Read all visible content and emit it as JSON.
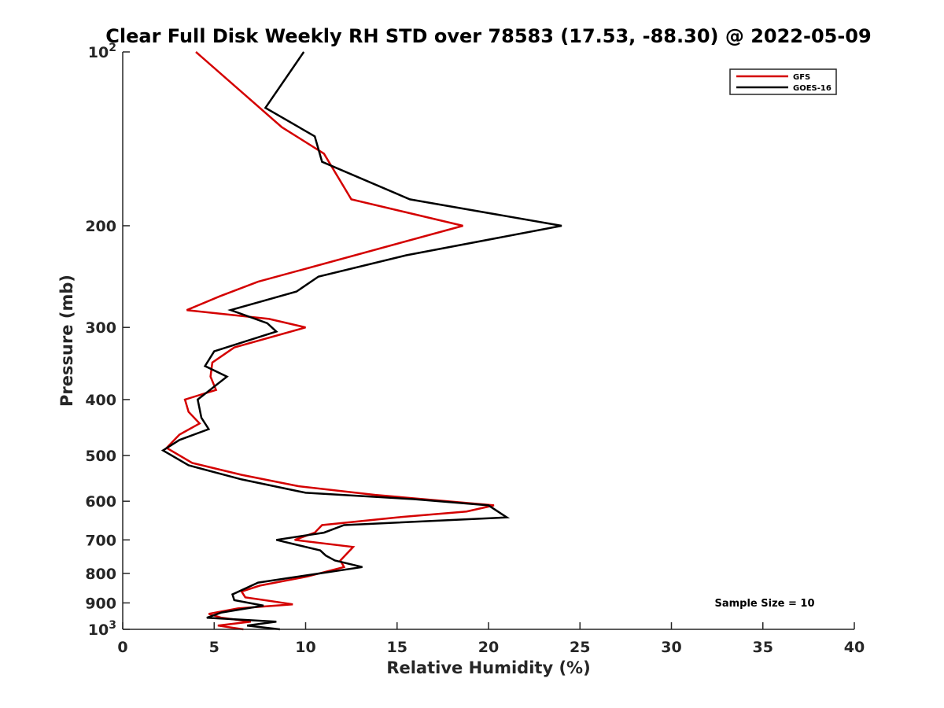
{
  "chart_data": {
    "type": "line",
    "title": "Clear Full Disk Weekly RH STD over 78583 (17.53, -88.30) @ 2022-05-09",
    "xlabel": "Relative Humidity (%)",
    "ylabel": "Pressure (mb)",
    "xlim": [
      0,
      40
    ],
    "ylim": [
      100,
      1000
    ],
    "y_scale": "log",
    "y_reversed": true,
    "grid": false,
    "legend_position": "top-right",
    "xticks": [
      0,
      5,
      10,
      15,
      20,
      25,
      30,
      35,
      40
    ],
    "xtick_labels": [
      "0",
      "5",
      "10",
      "15",
      "20",
      "25",
      "30",
      "35",
      "40"
    ],
    "yticks": [
      100,
      200,
      300,
      400,
      500,
      600,
      700,
      800,
      900,
      1000
    ],
    "ytick_labels": [
      {
        "base": "10",
        "exp": "2"
      },
      {
        "base": "200",
        "exp": ""
      },
      {
        "base": "300",
        "exp": ""
      },
      {
        "base": "400",
        "exp": ""
      },
      {
        "base": "500",
        "exp": ""
      },
      {
        "base": "600",
        "exp": ""
      },
      {
        "base": "700",
        "exp": ""
      },
      {
        "base": "800",
        "exp": ""
      },
      {
        "base": "900",
        "exp": ""
      },
      {
        "base": "10",
        "exp": "3"
      }
    ],
    "annotation": "Sample Size = 10",
    "series": [
      {
        "name": "GFS",
        "color": "#d40000",
        "points": [
          [
            4.0,
            100
          ],
          [
            8.7,
            135
          ],
          [
            11.0,
            150
          ],
          [
            12.5,
            180
          ],
          [
            18.6,
            200
          ],
          [
            7.4,
            250
          ],
          [
            5.3,
            265
          ],
          [
            3.5,
            280
          ],
          [
            8.0,
            290
          ],
          [
            10.0,
            300
          ],
          [
            6.1,
            325
          ],
          [
            4.9,
            345
          ],
          [
            4.8,
            365
          ],
          [
            5.1,
            385
          ],
          [
            3.4,
            400
          ],
          [
            3.6,
            420
          ],
          [
            4.2,
            440
          ],
          [
            3.1,
            460
          ],
          [
            2.4,
            485
          ],
          [
            3.8,
            515
          ],
          [
            6.5,
            540
          ],
          [
            9.6,
            565
          ],
          [
            13.8,
            585
          ],
          [
            20.3,
            610
          ],
          [
            18.8,
            625
          ],
          [
            15.0,
            640
          ],
          [
            10.9,
            660
          ],
          [
            10.5,
            680
          ],
          [
            9.4,
            700
          ],
          [
            12.6,
            720
          ],
          [
            11.9,
            760
          ],
          [
            12.1,
            780
          ],
          [
            10.1,
            810
          ],
          [
            7.5,
            840
          ],
          [
            6.5,
            860
          ],
          [
            6.7,
            880
          ],
          [
            9.3,
            905
          ],
          [
            6.3,
            920
          ],
          [
            4.7,
            940
          ],
          [
            5.4,
            955
          ],
          [
            7.0,
            970
          ],
          [
            5.2,
            985
          ],
          [
            6.6,
            1000
          ]
        ]
      },
      {
        "name": "GOES-16",
        "color": "#000000",
        "points": [
          [
            9.9,
            100
          ],
          [
            7.8,
            125
          ],
          [
            10.5,
            140
          ],
          [
            10.9,
            155
          ],
          [
            15.7,
            180
          ],
          [
            24.0,
            200
          ],
          [
            15.5,
            225
          ],
          [
            10.7,
            245
          ],
          [
            9.5,
            260
          ],
          [
            5.9,
            280
          ],
          [
            7.9,
            295
          ],
          [
            8.4,
            305
          ],
          [
            5.0,
            330
          ],
          [
            4.5,
            350
          ],
          [
            5.7,
            365
          ],
          [
            4.1,
            400
          ],
          [
            4.3,
            430
          ],
          [
            4.7,
            450
          ],
          [
            3.1,
            470
          ],
          [
            2.2,
            490
          ],
          [
            3.6,
            520
          ],
          [
            6.5,
            550
          ],
          [
            10.0,
            580
          ],
          [
            15.9,
            595
          ],
          [
            20.0,
            610
          ],
          [
            21.0,
            640
          ],
          [
            12.1,
            660
          ],
          [
            11.0,
            680
          ],
          [
            8.4,
            700
          ],
          [
            10.8,
            730
          ],
          [
            11.1,
            745
          ],
          [
            11.6,
            760
          ],
          [
            13.1,
            780
          ],
          [
            7.4,
            830
          ],
          [
            6.0,
            870
          ],
          [
            6.1,
            890
          ],
          [
            7.7,
            910
          ],
          [
            5.4,
            935
          ],
          [
            4.6,
            955
          ],
          [
            8.4,
            970
          ],
          [
            6.8,
            985
          ],
          [
            8.6,
            1000
          ]
        ]
      }
    ]
  }
}
